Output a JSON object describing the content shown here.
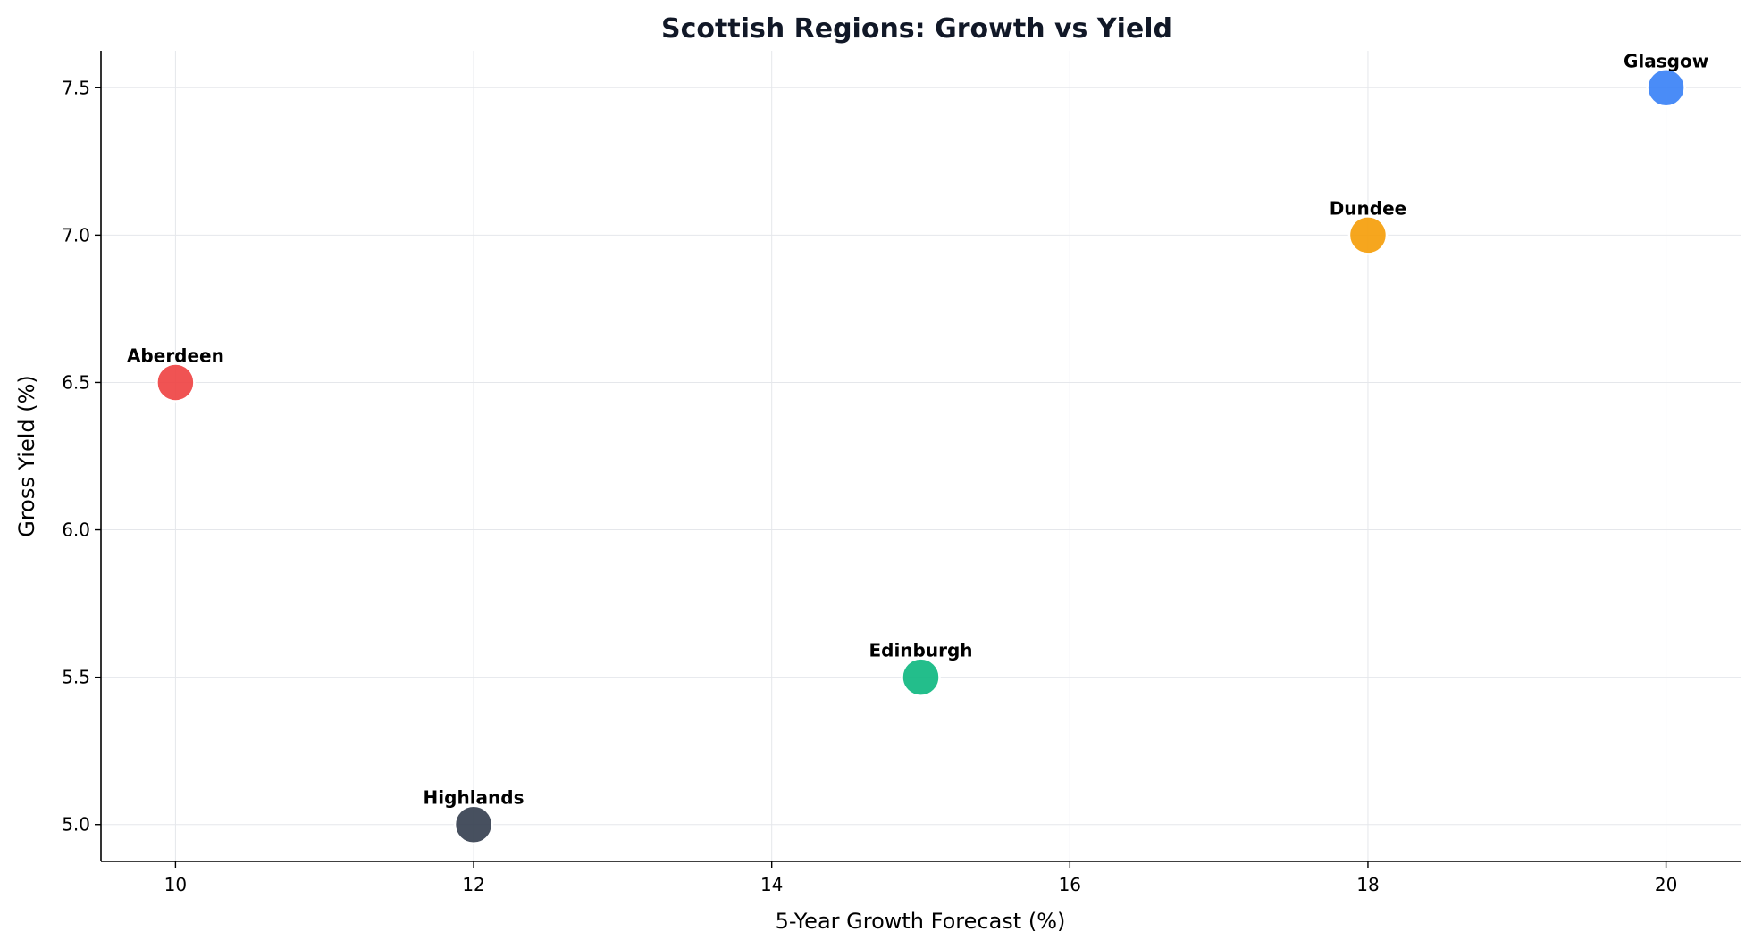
{
  "chart_data": {
    "type": "scatter",
    "title": "Scottish Regions: Growth vs Yield",
    "xlabel": "5-Year Growth Forecast (%)",
    "ylabel": "Gross Yield (%)",
    "xlim": [
      9.5,
      20.5
    ],
    "ylim": [
      4.875,
      7.625
    ],
    "xticks": [
      10,
      12,
      14,
      16,
      18,
      20
    ],
    "xtick_labels": [
      "10",
      "12",
      "14",
      "16",
      "18",
      "20"
    ],
    "yticks": [
      5.0,
      5.5,
      6.0,
      6.5,
      7.0,
      7.5
    ],
    "ytick_labels": [
      "5.0",
      "5.5",
      "6.0",
      "6.5",
      "7.0",
      "7.5"
    ],
    "grid": true,
    "legend": "none",
    "points": [
      {
        "label": "Aberdeen",
        "x": 10,
        "y": 6.5,
        "color": "#ef4444"
      },
      {
        "label": "Highlands",
        "x": 12,
        "y": 5.0,
        "color": "#374151"
      },
      {
        "label": "Edinburgh",
        "x": 15,
        "y": 5.5,
        "color": "#10b981"
      },
      {
        "label": "Dundee",
        "x": 18,
        "y": 7.0,
        "color": "#f59e0b"
      },
      {
        "label": "Glasgow",
        "x": 20,
        "y": 7.5,
        "color": "#3b82f6"
      }
    ]
  }
}
